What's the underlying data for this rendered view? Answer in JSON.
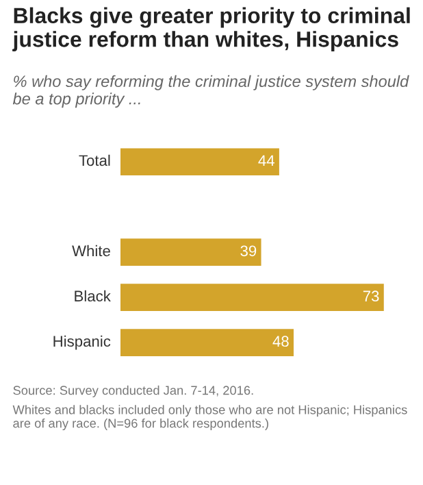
{
  "chart_data": {
    "type": "bar",
    "orientation": "horizontal",
    "title": "Blacks give greater priority to criminal justice reform than whites, Hispanics",
    "subtitle": "% who say reforming the criminal justice system should be a top priority ...",
    "categories": [
      "Total",
      null,
      "White",
      "Black",
      "Hispanic"
    ],
    "values": [
      44,
      null,
      39,
      73,
      48
    ],
    "color": "#d3a42b",
    "data_labels": true,
    "annotations": [
      "Source: Survey conducted Jan. 7-14, 2016.",
      "Whites and blacks included only those who are not Hispanic; Hispanics are of any race. (N=96 for black respondents.)"
    ]
  }
}
